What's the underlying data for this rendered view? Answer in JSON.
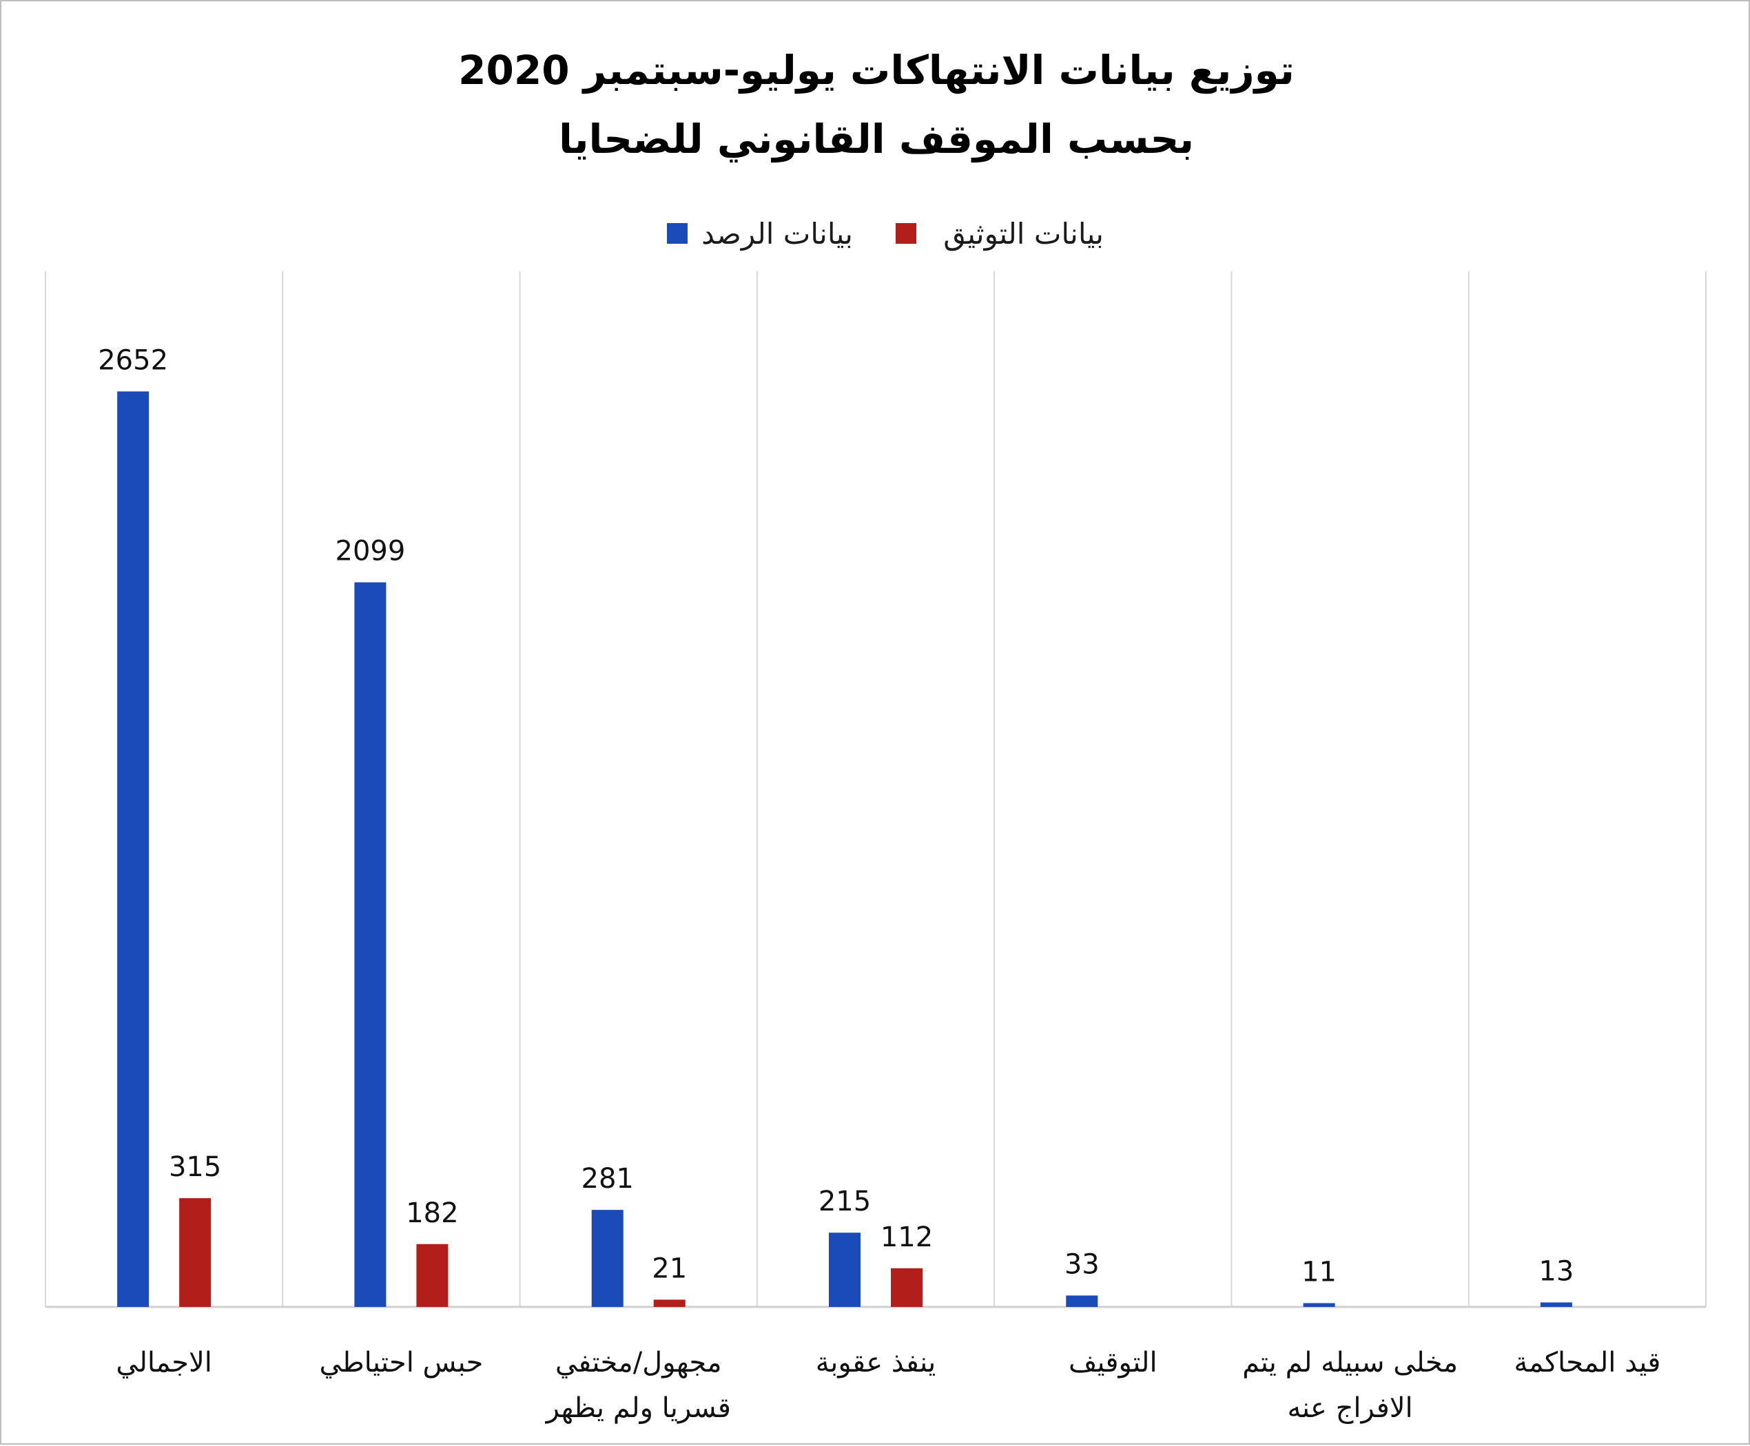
{
  "chart_data": {
    "type": "bar",
    "title": [
      "توزيع بيانات الانتهاكات يوليو-سبتمبر 2020",
      "بحسب الموقف القانوني للضحايا"
    ],
    "categories": [
      [
        "الاجمالي"
      ],
      [
        "حبس احتياطي"
      ],
      [
        "مجهول/مختفي",
        "قسريا ولم يظهر"
      ],
      [
        "ينفذ عقوبة"
      ],
      [
        "التوقيف"
      ],
      [
        "مخلى سبيله لم يتم",
        "الافراج عنه"
      ],
      [
        "قيد المحاكمة"
      ]
    ],
    "series": [
      {
        "name": "بيانات الرصد",
        "color": "#1a4bb8",
        "values": [
          2652,
          2099,
          281,
          215,
          33,
          11,
          13
        ]
      },
      {
        "name": "بيانات التوثيق",
        "color": "#b21f1a",
        "values": [
          315,
          182,
          21,
          112,
          null,
          null,
          null
        ]
      }
    ],
    "ylim": [
      0,
      3000
    ],
    "grid": "vertical category separators",
    "legend": "top-center",
    "xlabel": "",
    "ylabel": ""
  }
}
